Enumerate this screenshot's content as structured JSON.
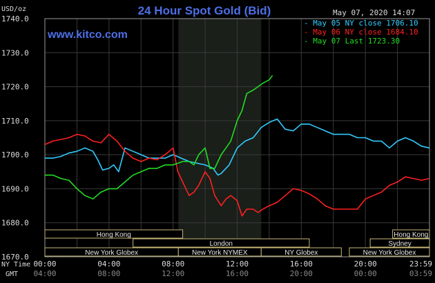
{
  "header": {
    "title": "24 Hour Spot Gold (Bid)",
    "unit_label": "USD/oz",
    "timestamp": "May 07, 2020 14:07",
    "site": "www.kitco.com"
  },
  "legend": [
    {
      "text": "May 05 NY close 1706.10",
      "color": "#33ccff"
    },
    {
      "text": "May 06 NY close 1684.10",
      "color": "#ff2020"
    },
    {
      "text": "May 07 Last 1723.30",
      "color": "#22dd22"
    }
  ],
  "axis": {
    "row1_label": "NY Time",
    "row2_label": "GMT",
    "x_top": [
      "00:00",
      "04:00",
      "08:00",
      "12:00",
      "16:00",
      "20:00",
      "23:59"
    ],
    "x_bottom": [
      "04:00",
      "08:00",
      "12:00",
      "16:00",
      "20:00",
      "00:00",
      "03:59"
    ],
    "y_ticks": [
      "1740.0",
      "1730.0",
      "1720.0",
      "1710.0",
      "1700.0",
      "1690.0",
      "1680.0",
      "1670.0"
    ]
  },
  "sessions": [
    {
      "label": "Hong Kong"
    },
    {
      "label": "Hong Kong"
    },
    {
      "label": "Sydney"
    },
    {
      "label": "London"
    },
    {
      "label": "New York Globex"
    },
    {
      "label": "New York NYMEX"
    },
    {
      "label": "NY Globex"
    },
    {
      "label": "New York Globex"
    }
  ],
  "chart_data": {
    "type": "line",
    "title": "24 Hour Spot Gold (Bid)",
    "ylabel": "USD/oz",
    "ylim": [
      1670,
      1740
    ],
    "xlim": [
      0,
      24
    ],
    "x_unit": "hours (NY time)",
    "series": [
      {
        "name": "May 05 NY close 1706.10",
        "color": "#33ccff",
        "x": [
          0,
          0.5,
          1,
          1.5,
          2,
          2.5,
          3,
          3.3,
          3.6,
          4,
          4.3,
          4.6,
          5,
          5.5,
          6,
          6.5,
          7,
          7.5,
          8,
          8.5,
          9,
          9.5,
          10,
          10.5,
          10.8,
          11,
          11.5,
          12,
          12.5,
          13,
          13.5,
          14,
          14.5,
          15,
          15.5,
          16,
          16.5,
          17,
          17.5,
          18,
          18.5,
          19,
          19.5,
          20,
          20.5,
          21,
          21.5,
          22,
          22.5,
          23,
          23.5,
          24
        ],
        "y": [
          1699,
          1699,
          1699.5,
          1700.5,
          1701,
          1702,
          1701,
          1698.5,
          1695.5,
          1696,
          1697,
          1695,
          1702,
          1701,
          1700,
          1699,
          1699,
          1699,
          1700,
          1699,
          1698,
          1697.5,
          1697,
          1696,
          1694,
          1694.5,
          1697,
          1702,
          1704,
          1705,
          1708,
          1709.5,
          1710.5,
          1707.5,
          1707,
          1709,
          1709,
          1708,
          1707,
          1706,
          1706,
          1706,
          1705,
          1705,
          1704,
          1704,
          1702,
          1704,
          1705,
          1704,
          1702.5,
          1702
        ]
      },
      {
        "name": "May 06 NY close 1684.10",
        "color": "#ff2020",
        "x": [
          0,
          0.5,
          1,
          1.5,
          2,
          2.5,
          3,
          3.5,
          4,
          4.5,
          5,
          5.5,
          6,
          6.5,
          7,
          7.5,
          8,
          8.3,
          8.6,
          9,
          9.3,
          9.6,
          10,
          10.3,
          10.6,
          11,
          11.3,
          11.6,
          12,
          12.3,
          12.6,
          13,
          13.3,
          13.6,
          14,
          14.5,
          15,
          15.5,
          16,
          16.5,
          17,
          17.5,
          18,
          18.5,
          19,
          19.5,
          20,
          20.5,
          21,
          21.5,
          22,
          22.5,
          23,
          23.5,
          24
        ],
        "y": [
          1703,
          1704,
          1704.5,
          1705,
          1706,
          1705.5,
          1704,
          1703.5,
          1706,
          1704,
          1701,
          1699,
          1698,
          1699,
          1698.5,
          1700,
          1702,
          1695,
          1692,
          1688,
          1689,
          1691,
          1695,
          1693,
          1688,
          1685,
          1687,
          1688,
          1686.5,
          1682,
          1684,
          1684,
          1683,
          1684,
          1685,
          1686,
          1688,
          1690,
          1689.5,
          1688.5,
          1687,
          1685,
          1684,
          1684,
          1684,
          1684,
          1687,
          1688,
          1689,
          1691,
          1692,
          1693.5,
          1693,
          1692.5,
          1693
        ]
      },
      {
        "name": "May 07 Last 1723.30",
        "color": "#22dd22",
        "x": [
          0,
          0.5,
          1,
          1.5,
          2,
          2.5,
          3,
          3.5,
          4,
          4.5,
          5,
          5.5,
          6,
          6.5,
          7,
          7.5,
          8,
          8.3,
          8.6,
          9,
          9.3,
          9.6,
          10,
          10.3,
          10.6,
          11,
          11.3,
          11.6,
          12,
          12.3,
          12.6,
          13,
          13.3,
          13.6,
          14,
          14.2
        ],
        "y": [
          1694,
          1694,
          1693,
          1692.5,
          1690,
          1688,
          1687,
          1689,
          1690,
          1690,
          1692,
          1694,
          1695,
          1696,
          1696,
          1697,
          1697,
          1697.5,
          1698,
          1698,
          1697,
          1700,
          1702,
          1696,
          1696,
          1700,
          1702,
          1704,
          1710,
          1713,
          1718,
          1719,
          1720,
          1721,
          1722,
          1723.3
        ]
      }
    ]
  }
}
